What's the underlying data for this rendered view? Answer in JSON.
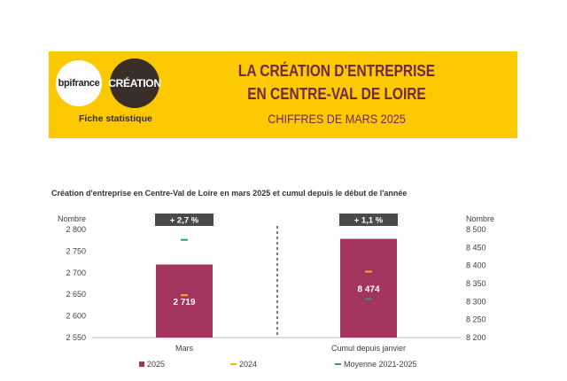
{
  "header": {
    "logo_left": "bpifrance",
    "logo_right": "CRÉATION",
    "subtitle_left": "Fiche statistique",
    "title_line1": "LA CRÉATION D'ENTREPRISE",
    "title_line2": "EN CENTRE-VAL DE LOIRE",
    "title_line3": "CHIFFRES DE MARS 2025"
  },
  "colors": {
    "banner": "#fcc800",
    "title": "#6e2a45",
    "bar_2025": "#a3345f",
    "marker_2024": "#f2b600",
    "marker_avg": "#23a07e",
    "badge": "#4a4a4a"
  },
  "chart_data": {
    "type": "bar",
    "title": "Création d'entreprise en Centre-Val de Loire en mars 2025 et cumul depuis le début de l'année",
    "left_axis": {
      "label": "Nombre",
      "ylim": [
        2550,
        2800
      ],
      "ticks": [
        "2 550",
        "2 600",
        "2 650",
        "2 700",
        "2 750",
        "2 800"
      ]
    },
    "right_axis": {
      "label": "Nombre",
      "ylim": [
        8200,
        8500
      ],
      "ticks": [
        "8 200",
        "8 250",
        "8 300",
        "8 350",
        "8 400",
        "8 450",
        "8 500"
      ]
    },
    "groups": [
      {
        "category": "Mars",
        "axis": "left",
        "value_2025": 2719,
        "value_2025_label": "2 719",
        "value_2024": 2648,
        "value_avg": 2776,
        "badge": "+ 2,7 %"
      },
      {
        "category": "Cumul depuis janvier",
        "axis": "right",
        "value_2025": 8474,
        "value_2025_label": "8 474",
        "value_2024": 8383,
        "value_avg": 8307,
        "badge": "+ 1,1 %"
      }
    ],
    "legend": [
      "2025",
      "2024",
      "Moyenne 2021-2025"
    ],
    "legend_position": "bottom"
  }
}
